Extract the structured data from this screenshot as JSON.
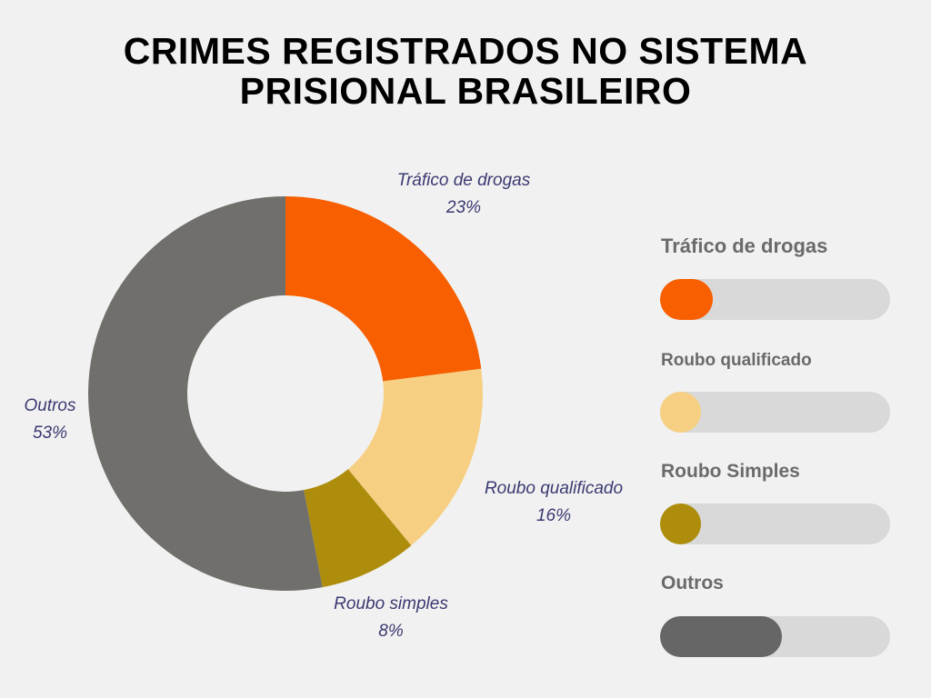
{
  "chart_data": {
    "type": "pie",
    "variant": "donut",
    "title_lines": [
      "CRIMES REGISTRADOS NO SISTEMA",
      "PRISIONAL BRASILEIRO"
    ],
    "slices": [
      {
        "name": "Tráfico de drogas",
        "value": 23,
        "label": "23%",
        "color": "#f75f00"
      },
      {
        "name": "Roubo qualificado",
        "value": 16,
        "label": "16%",
        "color": "#f7cf82"
      },
      {
        "name": "Roubo simples",
        "value": 8,
        "label": "8%",
        "color": "#ae8c0c"
      },
      {
        "name": "Outros",
        "value": 53,
        "label": "53%",
        "color": "#706f6b"
      }
    ],
    "legend": [
      {
        "label": "Tráfico de drogas",
        "value": 23,
        "color": "#f75f00"
      },
      {
        "label": "Roubo qualificado",
        "value": 16,
        "color": "#f7cf82"
      },
      {
        "label": "Roubo Simples",
        "value": 8,
        "color": "#ae8c0c"
      },
      {
        "label": "Outros",
        "value": 53,
        "color": "#666666"
      }
    ],
    "legend_placement": "right"
  }
}
